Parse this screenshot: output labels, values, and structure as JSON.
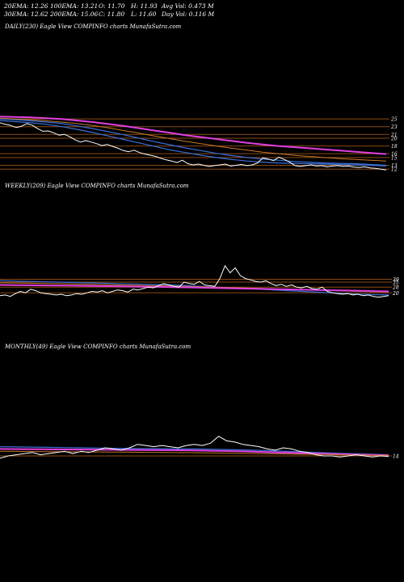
{
  "header": {
    "row1": [
      {
        "label": "20EMA:",
        "value": "12.26"
      },
      {
        "label": "100EMA:",
        "value": "13.21"
      },
      {
        "label": "O:",
        "value": "11.70"
      },
      {
        "label": "H:",
        "value": "11.93"
      },
      {
        "label": "Avg Vol:",
        "value": "0.473 M"
      }
    ],
    "row2": [
      {
        "label": "30EMA:",
        "value": "12.62"
      },
      {
        "label": "200EMA:",
        "value": "15.06"
      },
      {
        "label": "C:",
        "value": "11.80"
      },
      {
        "label": "L:",
        "value": "11.60"
      },
      {
        "label": "Day Vol:",
        "value": "0.116  M"
      }
    ]
  },
  "panels": {
    "daily": {
      "title": "DAILY(230) Eagle   View  COMPINFO charts MunafaSutra.com"
    },
    "weekly": {
      "title": "WEEKLY(209) Eagle   View  COMPINFO charts MunafaSutra.com"
    },
    "monthly": {
      "title": "MONTHLY(49) Eagle   View  COMPINFO charts MunafaSutra.com"
    }
  },
  "colors": {
    "background": "#000000",
    "price": "#ffffff",
    "ema_blue": "#3a6fd8",
    "ema_pink": "#e040e0",
    "ema_orange": "#c8782a",
    "level_line": "#8a4a12",
    "level_fill": "#6b3a0e"
  },
  "chart_data": [
    {
      "type": "line",
      "name": "daily",
      "ylim": [
        11,
        26.5
      ],
      "y_ticks": [
        25,
        23,
        21,
        20,
        18,
        16,
        15,
        13,
        12
      ],
      "grid": false,
      "series": [
        {
          "role": "price",
          "values": [
            24.0,
            23.6,
            23.3,
            22.8,
            23.1,
            23.8,
            23.4,
            22.5,
            21.8,
            21.9,
            21.4,
            20.8,
            21.0,
            20.4,
            19.6,
            19.0,
            19.4,
            19.0,
            18.6,
            18.1,
            18.4,
            17.9,
            17.4,
            16.8,
            16.5,
            16.9,
            16.3,
            15.9,
            15.6,
            15.3,
            14.8,
            14.4,
            14.1,
            13.7,
            14.3,
            13.4,
            13.1,
            13.3,
            13.0,
            12.7,
            12.9,
            13.1,
            13.3,
            12.8,
            13.0,
            13.2,
            12.9,
            13.1,
            13.6,
            14.9,
            14.6,
            14.2,
            15.1,
            14.5,
            13.8,
            12.9,
            12.7,
            12.9,
            13.1,
            12.8,
            12.9,
            12.6,
            12.8,
            12.9,
            12.7,
            12.8,
            12.5,
            12.4,
            12.6,
            12.3,
            12.2,
            12.0,
            11.8
          ]
        },
        {
          "role": "ema",
          "color": "ema_blue",
          "values": [
            24.6,
            24.3,
            24.0,
            23.6,
            23.0,
            22.3,
            21.5,
            20.6,
            19.7,
            18.8,
            17.9,
            17.0,
            16.3,
            15.6,
            15.0,
            14.5,
            14.1,
            13.8,
            13.6,
            13.5,
            13.4,
            13.3,
            13.2,
            13.1,
            13.0,
            12.8
          ]
        },
        {
          "role": "ema",
          "color": "ema_blue",
          "values": [
            25.0,
            24.8,
            24.5,
            24.2,
            23.8,
            23.2,
            22.5,
            21.7,
            20.9,
            20.0,
            19.1,
            18.3,
            17.5,
            16.8,
            16.1,
            15.5,
            15.0,
            14.6,
            14.3,
            14.0,
            13.8,
            13.6,
            13.5,
            13.4,
            13.2,
            13.0
          ]
        },
        {
          "role": "ema",
          "color": "ema_orange",
          "values": [
            25.2,
            25.0,
            24.8,
            24.5,
            24.2,
            23.8,
            23.3,
            22.7,
            22.0,
            21.3,
            20.6,
            19.9,
            19.2,
            18.6,
            18.0,
            17.4,
            16.9,
            16.4,
            16.0,
            15.6,
            15.3,
            15.0,
            14.7,
            14.5,
            14.3,
            14.1
          ]
        },
        {
          "role": "ema",
          "color": "ema_pink",
          "values": [
            25.6,
            25.5,
            25.4,
            25.2,
            25.0,
            24.6,
            24.2,
            23.7,
            23.2,
            22.6,
            22.0,
            21.4,
            20.8,
            20.3,
            19.8,
            19.3,
            18.8,
            18.4,
            18.0,
            17.7,
            17.4,
            17.1,
            16.8,
            16.5,
            16.2,
            15.9
          ]
        }
      ]
    },
    {
      "type": "line",
      "name": "weekly",
      "ylim": [
        9,
        61
      ],
      "y_ticks": [
        39,
        35,
        28,
        20
      ],
      "grid": false,
      "series": [
        {
          "role": "price",
          "values": [
            16,
            17,
            15,
            19,
            22,
            20,
            25,
            23,
            20,
            19,
            18,
            17,
            18,
            16,
            17,
            19,
            18,
            20,
            22,
            21,
            23,
            20,
            22,
            24,
            23,
            21,
            25,
            24,
            26,
            28,
            27,
            30,
            33,
            31,
            29,
            28,
            35,
            33,
            32,
            36,
            31,
            30,
            29,
            40,
            58,
            48,
            55,
            44,
            40,
            38,
            36,
            35,
            37,
            33,
            30,
            32,
            29,
            31,
            28,
            27,
            29,
            26,
            25,
            28,
            22,
            20,
            19,
            18,
            19,
            17,
            18,
            16,
            17,
            15,
            14,
            15,
            16
          ]
        },
        {
          "role": "ema",
          "color": "ema_blue",
          "values": [
            37,
            36.5,
            36,
            35.5,
            35,
            34.5,
            34,
            33.5,
            33,
            32.5,
            32,
            31.5,
            31,
            30,
            29,
            28,
            27,
            26,
            25,
            24,
            23,
            22,
            21,
            20,
            19,
            18,
            17.5,
            17
          ]
        },
        {
          "role": "ema",
          "color": "ema_orange",
          "values": [
            34,
            33.7,
            33.4,
            33.1,
            32.8,
            32.4,
            32,
            31.6,
            31.2,
            30.8,
            30.4,
            30,
            29.5,
            29,
            28.5,
            28,
            27.4,
            26.8,
            26.2,
            25.6,
            25,
            24.4,
            23.8,
            23.2,
            22.6,
            22,
            21.5,
            21
          ]
        },
        {
          "role": "ema",
          "color": "ema_pink",
          "values": [
            31,
            30.8,
            30.6,
            30.4,
            30.2,
            30,
            29.8,
            29.5,
            29.2,
            28.9,
            28.6,
            28.3,
            28,
            27.6,
            27.2,
            26.8,
            26.4,
            26,
            25.6,
            25.2,
            24.8,
            24.4,
            24,
            23.6,
            23.2,
            22.8,
            22.4,
            22
          ]
        }
      ]
    },
    {
      "type": "line",
      "name": "monthly",
      "ylim": [
        7,
        42
      ],
      "y_ticks": [
        14
      ],
      "grid": false,
      "series": [
        {
          "role": "price",
          "values": [
            12,
            14,
            15,
            16,
            17,
            15,
            16,
            17,
            18,
            16,
            18,
            17,
            19,
            21,
            20,
            19,
            21,
            24,
            23,
            22,
            23,
            22,
            21,
            23,
            24,
            23,
            25,
            31,
            27,
            26,
            24,
            23,
            22,
            20,
            19,
            21,
            20,
            18,
            17,
            15,
            14,
            14,
            13,
            14,
            15,
            14,
            13,
            14,
            13.5
          ]
        },
        {
          "role": "ema",
          "color": "ema_blue",
          "values": [
            22,
            21.8,
            21.6,
            21.4,
            21.2,
            21,
            20.8,
            20.6,
            20.4,
            20.3,
            20.2,
            20.1,
            20,
            19.8,
            19.5,
            19.2,
            18.8,
            18.3,
            17.8,
            17.2,
            16.7,
            16.2,
            15.8,
            15.4,
            15
          ]
        },
        {
          "role": "ema",
          "color": "ema_pink",
          "values": [
            20,
            19.9,
            19.8,
            19.7,
            19.6,
            19.5,
            19.4,
            19.3,
            19.2,
            19.1,
            19,
            18.9,
            18.7,
            18.5,
            18.2,
            17.9,
            17.5,
            17.1,
            16.7,
            16.3,
            15.9,
            15.5,
            15.1,
            14.8,
            14.5
          ]
        },
        {
          "role": "ema",
          "color": "ema_orange",
          "values": [
            18,
            17.9,
            17.8,
            17.7,
            17.6,
            17.5,
            17.4,
            17.3,
            17.2,
            17.1,
            17,
            16.9,
            16.8,
            16.6,
            16.4,
            16.2,
            16,
            15.8,
            15.6,
            15.4,
            15.2,
            15,
            14.8,
            14.6,
            14.4
          ]
        }
      ]
    }
  ]
}
